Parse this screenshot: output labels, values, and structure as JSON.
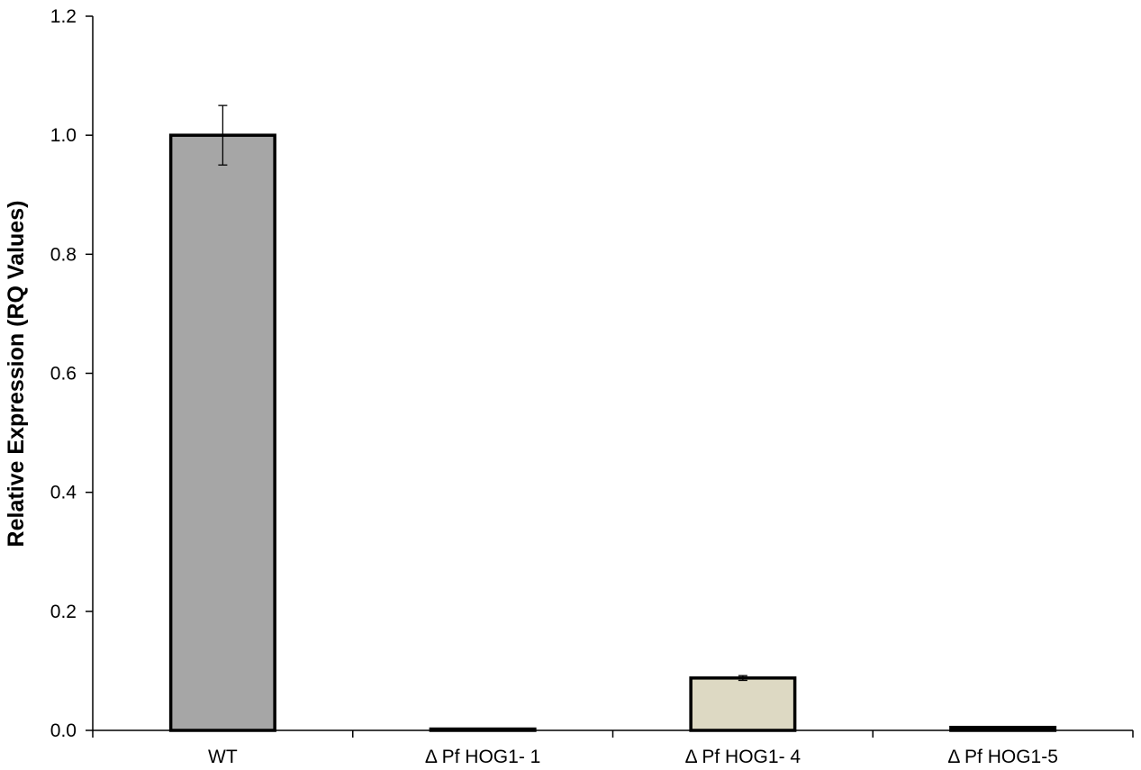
{
  "chart_data": {
    "type": "bar",
    "title": "",
    "xlabel": "",
    "ylabel": "Relative Expression (RQ Values)",
    "ylim": [
      0,
      1.2
    ],
    "yticks": [
      0.0,
      0.2,
      0.4,
      0.6,
      0.8,
      1.0,
      1.2
    ],
    "ytick_labels": [
      "0.0",
      "0.2",
      "0.4",
      "0.6",
      "0.8",
      "1.0",
      "1.2"
    ],
    "categories": [
      "WT",
      "Δ Pf HOG1- 1",
      "Δ Pf HOG1- 4",
      "Δ Pf HOG1-5"
    ],
    "values": [
      1.0,
      0.002,
      0.088,
      0.005
    ],
    "errors": [
      0.05,
      null,
      0.004,
      null
    ],
    "colors": [
      "#a6a6a6",
      "#ddd9c3",
      "#ddd9c3",
      "#ddd9c3"
    ],
    "grid": false,
    "legend": "none"
  }
}
